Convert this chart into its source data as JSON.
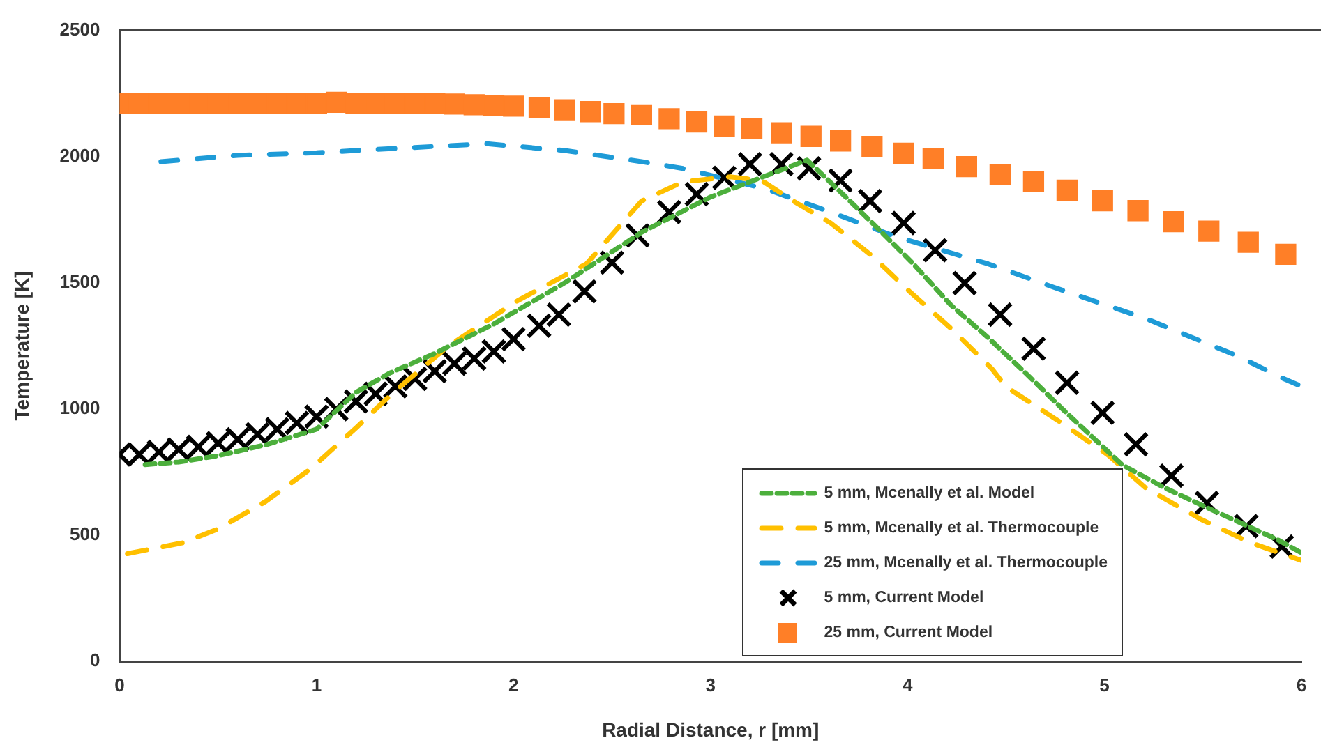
{
  "chart_data": {
    "type": "line",
    "xlabel": "Radial Distance, r [mm]",
    "ylabel": "Temperature [K]",
    "xlim": [
      0,
      6
    ],
    "xticks": [
      0,
      1,
      2,
      3,
      4,
      5,
      6
    ],
    "ylim": [
      0,
      2500
    ],
    "yticks": [
      0,
      500,
      1000,
      1500,
      2000,
      2500
    ],
    "grid": false,
    "legend": "bottom right",
    "series": [
      {
        "name": "5 mm, Mcenally et al. Model",
        "line_style": "dashed",
        "color": "#4caf3c",
        "x": [
          0.13,
          0.3,
          0.5,
          0.75,
          1.0,
          1.2,
          1.37,
          1.6,
          1.9,
          2.26,
          2.65,
          3.0,
          3.2,
          3.49,
          3.68,
          3.85,
          4.03,
          4.22,
          4.41,
          4.6,
          4.8,
          5.09,
          5.3,
          5.53,
          5.88,
          6.0
        ],
        "values": [
          780,
          790,
          815,
          860,
          920,
          1066,
          1142,
          1220,
          1337,
          1500,
          1700,
          1840,
          1900,
          1986,
          1845,
          1715,
          1575,
          1412,
          1282,
          1142,
          990,
          779,
          690,
          606,
          482,
          430
        ]
      },
      {
        "name": "5 mm, Mcenally et al. Thermocouple",
        "line_style": "dashed",
        "color": "#ffc000",
        "x": [
          0.04,
          0.32,
          0.5,
          0.74,
          0.97,
          1.2,
          1.39,
          1.67,
          2.02,
          2.37,
          2.65,
          2.86,
          3.1,
          3.26,
          3.42,
          3.61,
          3.82,
          4.01,
          4.22,
          4.43,
          4.5,
          4.79,
          5.02,
          5.21,
          5.49,
          5.74,
          6.0
        ],
        "values": [
          427,
          470,
          525,
          633,
          763,
          925,
          1066,
          1250,
          1429,
          1575,
          1824,
          1900,
          1920,
          1905,
          1824,
          1737,
          1607,
          1466,
          1320,
          1158,
          1088,
          941,
          817,
          687,
          563,
          471,
          400
        ]
      },
      {
        "name": "25 mm, Mcenally et al. Thermocouple",
        "line_style": "dashed",
        "color": "#1e9bd7",
        "x": [
          0.21,
          0.6,
          1.0,
          1.2,
          1.86,
          2.26,
          2.65,
          2.86,
          3.28,
          3.61,
          3.94,
          4.41,
          4.74,
          5.21,
          5.67,
          5.91,
          6.0
        ],
        "values": [
          1980,
          2005,
          2015,
          2024,
          2051,
          2024,
          1980,
          1953,
          1872,
          1780,
          1683,
          1575,
          1483,
          1358,
          1212,
          1120,
          1090
        ]
      },
      {
        "name": "5 mm, Current Model",
        "type": "scatter",
        "marker": "cross",
        "color": "#000000",
        "x": [
          0,
          0.1,
          0.2,
          0.3,
          0.4,
          0.5,
          0.6,
          0.7,
          0.8,
          0.9,
          1.0,
          1.1,
          1.2,
          1.3,
          1.4,
          1.5,
          1.6,
          1.7,
          1.8,
          1.9,
          2.0,
          2.13,
          2.23,
          2.36,
          2.5,
          2.63,
          2.79,
          2.93,
          3.07,
          3.2,
          3.36,
          3.5,
          3.66,
          3.81,
          3.98,
          4.14,
          4.29,
          4.47,
          4.64,
          4.81,
          4.99,
          5.16,
          5.34,
          5.52,
          5.72,
          5.9
        ],
        "values": [
          820,
          820,
          830,
          840,
          850,
          865,
          880,
          900,
          920,
          945,
          970,
          1000,
          1030,
          1060,
          1090,
          1120,
          1150,
          1180,
          1200,
          1228,
          1277,
          1330,
          1374,
          1466,
          1580,
          1688,
          1780,
          1851,
          1916,
          1970,
          1970,
          1953,
          1905,
          1824,
          1737,
          1629,
          1499,
          1374,
          1239,
          1104,
          985,
          860,
          736,
          628,
          536,
          455
        ]
      },
      {
        "name": "25 mm, Current Model",
        "type": "scatter",
        "marker": "square",
        "color": "#ff7f27",
        "x": [
          0,
          0.1,
          0.2,
          0.3,
          0.4,
          0.5,
          0.6,
          0.7,
          0.8,
          0.9,
          1.0,
          1.1,
          1.2,
          1.3,
          1.4,
          1.5,
          1.6,
          1.7,
          1.8,
          1.9,
          2.0,
          2.13,
          2.26,
          2.39,
          2.51,
          2.65,
          2.79,
          2.93,
          3.07,
          3.21,
          3.36,
          3.51,
          3.66,
          3.82,
          3.98,
          4.13,
          4.3,
          4.47,
          4.64,
          4.81,
          4.99,
          5.17,
          5.35,
          5.53,
          5.73,
          5.92
        ],
        "values": [
          2210,
          2210,
          2210,
          2210,
          2210,
          2210,
          2210,
          2210,
          2210,
          2210,
          2210,
          2215,
          2210,
          2210,
          2210,
          2210,
          2210,
          2208,
          2205,
          2203,
          2200,
          2195,
          2185,
          2178,
          2170,
          2165,
          2150,
          2137,
          2121,
          2110,
          2094,
          2080,
          2062,
          2040,
          2013,
          1991,
          1960,
          1930,
          1900,
          1867,
          1825,
          1786,
          1742,
          1705,
          1661,
          1613
        ]
      }
    ]
  }
}
